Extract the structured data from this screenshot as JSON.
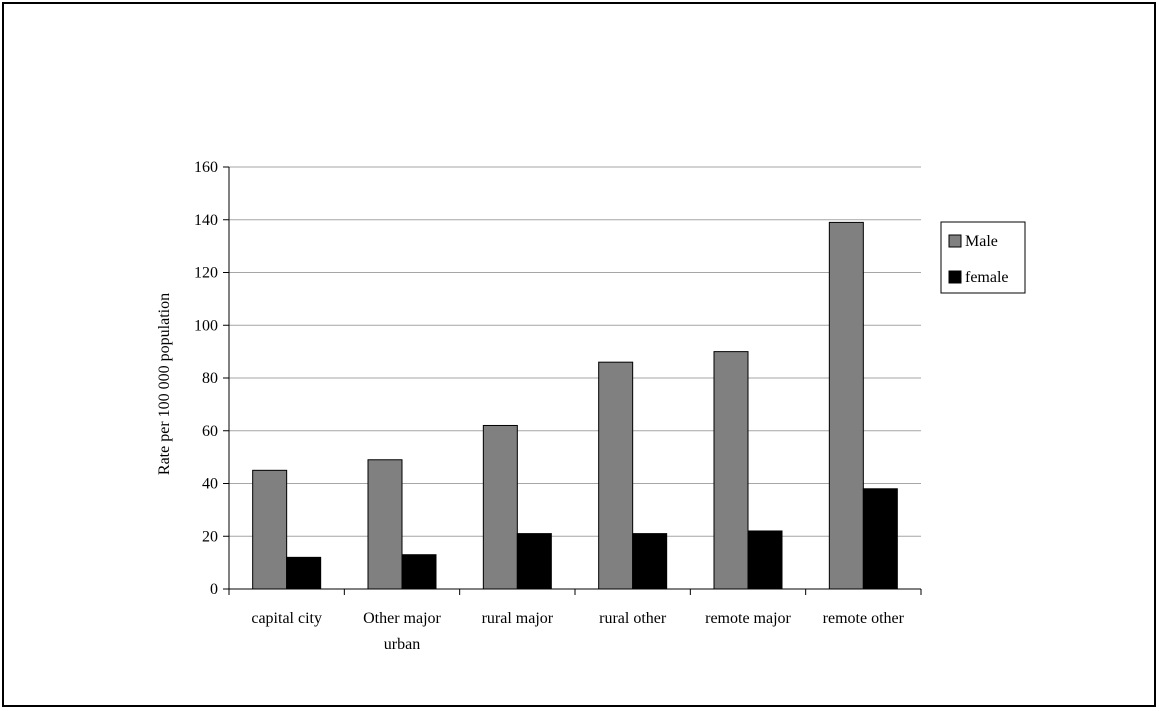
{
  "chart_data": {
    "type": "bar",
    "title": "",
    "xlabel": "",
    "ylabel": "Rate per 100 000 population",
    "ylim": [
      0,
      160
    ],
    "yticks": [
      0,
      20,
      40,
      60,
      80,
      100,
      120,
      140,
      160
    ],
    "grid": true,
    "legend_position": "right",
    "categories": [
      [
        "capital city"
      ],
      [
        "Other major",
        "urban"
      ],
      [
        "rural major"
      ],
      [
        "rural other"
      ],
      [
        "remote major"
      ],
      [
        "remote other"
      ]
    ],
    "series": [
      {
        "name": "Male",
        "color": "#808080",
        "values": [
          45,
          49,
          62,
          86,
          90,
          139
        ]
      },
      {
        "name": "female",
        "color": "#000000",
        "values": [
          12,
          13,
          21,
          21,
          22,
          38
        ]
      }
    ]
  }
}
